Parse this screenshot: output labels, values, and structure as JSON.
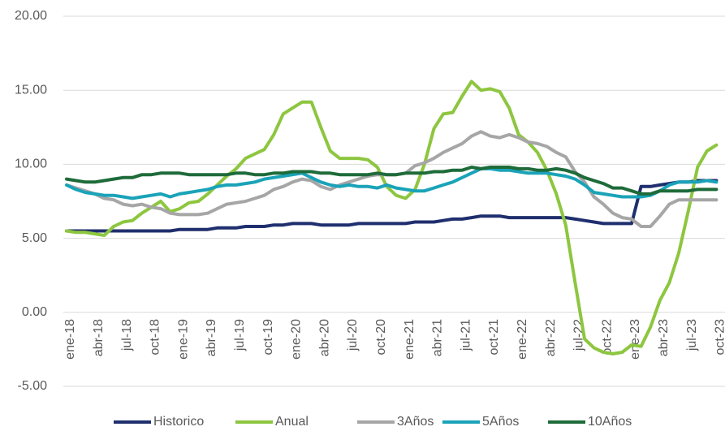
{
  "chart_data": {
    "type": "line",
    "categories": [
      "ene-18",
      null,
      null,
      "abr-18",
      null,
      null,
      "jul-18",
      null,
      null,
      "oct-18",
      null,
      null,
      "ene-19",
      null,
      null,
      "abr-19",
      null,
      null,
      "jul-19",
      null,
      null,
      "oct-19",
      null,
      null,
      "ene-20",
      null,
      null,
      "abr-20",
      null,
      null,
      "jul-20",
      null,
      null,
      "oct-20",
      null,
      null,
      "ene-21",
      null,
      null,
      "abr-21",
      null,
      null,
      "jul-21",
      null,
      null,
      "oct-21",
      null,
      null,
      "ene-22",
      null,
      null,
      "abr-22",
      null,
      null,
      "jul-22",
      null,
      null,
      "oct-22",
      null,
      null,
      "ene-23",
      null,
      null,
      "abr-23",
      null,
      null,
      "jul-23",
      null,
      null,
      "oct-23"
    ],
    "series": [
      {
        "name": "Historico",
        "color": "#1f2f6e",
        "values": [
          5.5,
          5.5,
          5.5,
          5.5,
          5.5,
          5.5,
          5.5,
          5.5,
          5.5,
          5.5,
          5.5,
          5.5,
          5.6,
          5.6,
          5.6,
          5.6,
          5.7,
          5.7,
          5.7,
          5.8,
          5.8,
          5.8,
          5.9,
          5.9,
          6.0,
          6.0,
          6.0,
          5.9,
          5.9,
          5.9,
          5.9,
          6.0,
          6.0,
          6.0,
          6.0,
          6.0,
          6.0,
          6.1,
          6.1,
          6.1,
          6.2,
          6.3,
          6.3,
          6.4,
          6.5,
          6.5,
          6.5,
          6.4,
          6.4,
          6.4,
          6.4,
          6.4,
          6.4,
          6.4,
          6.3,
          6.2,
          6.1,
          6.0,
          6.0,
          6.0,
          6.0,
          8.5,
          8.5,
          8.6,
          8.7,
          8.8,
          8.8,
          8.9,
          8.9,
          8.9
        ]
      },
      {
        "name": "Anual",
        "color": "#8dc63f",
        "values": [
          5.5,
          5.4,
          5.4,
          5.3,
          5.2,
          5.8,
          6.1,
          6.2,
          6.7,
          7.1,
          7.5,
          6.8,
          7.0,
          7.4,
          7.5,
          8.0,
          8.6,
          9.2,
          9.7,
          10.4,
          10.7,
          11.0,
          12.0,
          13.4,
          13.8,
          14.2,
          14.2,
          12.5,
          10.9,
          10.4,
          10.4,
          10.4,
          10.3,
          9.8,
          8.5,
          7.9,
          7.7,
          8.3,
          10.0,
          12.4,
          13.4,
          13.5,
          14.6,
          15.6,
          15.0,
          15.1,
          14.9,
          13.8,
          12.0,
          11.5,
          10.8,
          9.6,
          8.0,
          5.9,
          2.0,
          -1.8,
          -2.4,
          -2.7,
          -2.8,
          -2.7,
          -2.2,
          -2.3,
          -1.0,
          0.8,
          2.0,
          4.0,
          6.8,
          9.8,
          10.9,
          11.3
        ]
      },
      {
        "name": "3Años",
        "color": "#a6a6a6",
        "values": [
          8.6,
          8.4,
          8.2,
          8.0,
          7.7,
          7.6,
          7.3,
          7.2,
          7.3,
          7.1,
          7.0,
          6.7,
          6.6,
          6.6,
          6.6,
          6.7,
          7.0,
          7.3,
          7.4,
          7.5,
          7.7,
          7.9,
          8.3,
          8.5,
          8.8,
          9.0,
          8.9,
          8.5,
          8.3,
          8.6,
          8.8,
          9.0,
          9.2,
          9.3,
          9.3,
          9.3,
          9.4,
          9.9,
          10.1,
          10.4,
          10.8,
          11.1,
          11.4,
          11.9,
          12.2,
          11.9,
          11.8,
          12.0,
          11.8,
          11.5,
          11.4,
          11.2,
          10.8,
          10.5,
          9.5,
          8.8,
          7.8,
          7.3,
          6.7,
          6.4,
          6.3,
          5.8,
          5.8,
          6.5,
          7.3,
          7.6,
          7.6,
          7.6,
          7.6,
          7.6
        ]
      },
      {
        "name": "5Años",
        "color": "#1aa3b8",
        "values": [
          8.6,
          8.3,
          8.1,
          8.0,
          7.9,
          7.9,
          7.8,
          7.7,
          7.8,
          7.9,
          8.0,
          7.8,
          8.0,
          8.1,
          8.2,
          8.3,
          8.5,
          8.6,
          8.6,
          8.7,
          8.8,
          9.0,
          9.1,
          9.2,
          9.3,
          9.4,
          9.1,
          8.8,
          8.6,
          8.5,
          8.6,
          8.5,
          8.5,
          8.4,
          8.6,
          8.4,
          8.3,
          8.2,
          8.2,
          8.4,
          8.6,
          8.8,
          9.1,
          9.4,
          9.7,
          9.7,
          9.6,
          9.6,
          9.5,
          9.4,
          9.4,
          9.4,
          9.3,
          9.2,
          9.0,
          8.6,
          8.1,
          8.0,
          7.9,
          7.8,
          7.8,
          7.8,
          7.9,
          8.2,
          8.6,
          8.8,
          8.8,
          8.8,
          8.9,
          8.8
        ]
      },
      {
        "name": "10Años",
        "color": "#1e6b3a",
        "values": [
          9.0,
          8.9,
          8.8,
          8.8,
          8.9,
          9.0,
          9.1,
          9.1,
          9.3,
          9.3,
          9.4,
          9.4,
          9.4,
          9.3,
          9.3,
          9.3,
          9.3,
          9.3,
          9.4,
          9.4,
          9.3,
          9.3,
          9.4,
          9.4,
          9.5,
          9.5,
          9.5,
          9.4,
          9.4,
          9.3,
          9.3,
          9.3,
          9.3,
          9.4,
          9.3,
          9.3,
          9.4,
          9.4,
          9.4,
          9.5,
          9.5,
          9.6,
          9.6,
          9.8,
          9.7,
          9.8,
          9.8,
          9.8,
          9.7,
          9.7,
          9.6,
          9.6,
          9.7,
          9.6,
          9.4,
          9.1,
          8.9,
          8.7,
          8.4,
          8.4,
          8.2,
          8.0,
          8.0,
          8.2,
          8.2,
          8.2,
          8.2,
          8.3,
          8.3,
          8.3
        ]
      }
    ],
    "ylim": [
      -5,
      20
    ],
    "yticks": [
      {
        "value": -5,
        "label": "-5.00"
      },
      {
        "value": 0,
        "label": "0.00"
      },
      {
        "value": 5,
        "label": "5.00"
      },
      {
        "value": 10,
        "label": "10.00"
      },
      {
        "value": 15,
        "label": "15.00"
      },
      {
        "value": 20,
        "label": "20.00"
      }
    ],
    "grid": true,
    "legend": "bottom"
  }
}
